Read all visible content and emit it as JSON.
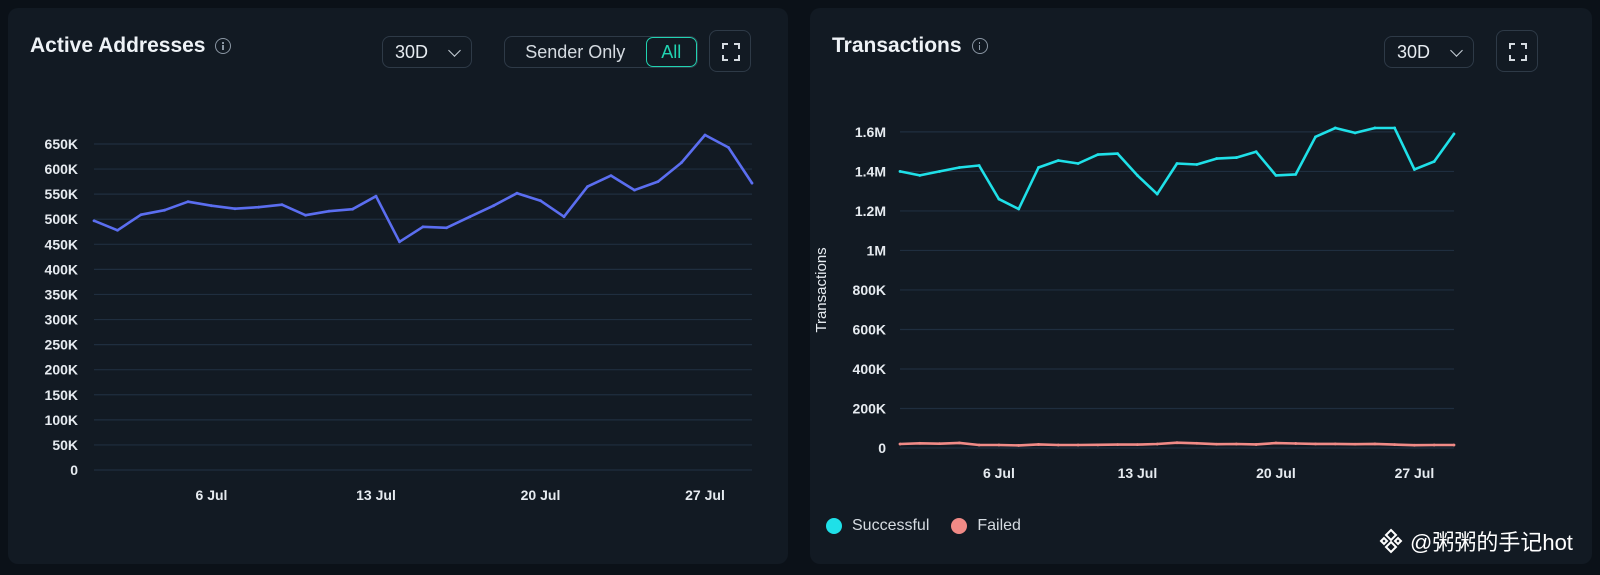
{
  "active_addresses": {
    "title": "Active Addresses",
    "period": "30D",
    "toggle": {
      "sender_only": "Sender Only",
      "all": "All",
      "selected": "All"
    },
    "line_color": "#5b6ef0"
  },
  "transactions": {
    "title": "Transactions",
    "period": "30D",
    "ylabel": "Transactions",
    "legend": [
      {
        "label": "Successful",
        "color": "#1fe0e8"
      },
      {
        "label": "Failed",
        "color": "#f08a86"
      }
    ]
  },
  "watermark": "@粥粥的手记hot",
  "colors": {
    "background": "#0b1118",
    "panel": "#121a23",
    "gridline": "#1f2e3f",
    "accent": "#21d3b1"
  },
  "chart_data": [
    {
      "type": "line",
      "title": "Active Addresses",
      "xlabel": "",
      "ylabel": "",
      "x_ticks": [
        "6 Jul",
        "13 Jul",
        "20 Jul",
        "27 Jul"
      ],
      "x_tick_days": [
        6,
        13,
        20,
        27
      ],
      "x": [
        1,
        2,
        3,
        4,
        5,
        6,
        7,
        8,
        9,
        10,
        11,
        12,
        13,
        14,
        15,
        16,
        17,
        18,
        19,
        20,
        21,
        22,
        23,
        24,
        25,
        26,
        27,
        28,
        29
      ],
      "y_ticks": [
        0,
        50000,
        100000,
        150000,
        200000,
        250000,
        300000,
        350000,
        400000,
        450000,
        500000,
        550000,
        600000,
        650000
      ],
      "y_tick_labels": [
        "0",
        "50K",
        "100K",
        "150K",
        "200K",
        "250K",
        "300K",
        "350K",
        "400K",
        "450K",
        "500K",
        "550K",
        "600K",
        "650K"
      ],
      "ylim": [
        0,
        650000
      ],
      "grid": true,
      "series": [
        {
          "values": [
            497000,
            478000,
            509000,
            518000,
            535000,
            527000,
            521000,
            524000,
            529000,
            508000,
            516000,
            520000,
            546000,
            455000,
            485000,
            483000,
            505000,
            527000,
            552000,
            537000,
            505000,
            565000,
            587000,
            558000,
            575000,
            613000,
            668000,
            643000,
            572000
          ]
        }
      ]
    },
    {
      "type": "line",
      "title": "Transactions",
      "xlabel": "",
      "ylabel": "Transactions",
      "x_ticks": [
        "6 Jul",
        "13 Jul",
        "20 Jul",
        "27 Jul"
      ],
      "x_tick_days": [
        6,
        13,
        20,
        27
      ],
      "x": [
        1,
        2,
        3,
        4,
        5,
        6,
        7,
        8,
        9,
        10,
        11,
        12,
        13,
        14,
        15,
        16,
        17,
        18,
        19,
        20,
        21,
        22,
        23,
        24,
        25,
        26,
        27,
        28,
        29
      ],
      "y_ticks": [
        0,
        200000,
        400000,
        600000,
        800000,
        1000000,
        1200000,
        1400000,
        1600000
      ],
      "y_tick_labels": [
        "0",
        "200K",
        "400K",
        "600K",
        "800K",
        "1M",
        "1.2M",
        "1.4M",
        "1.6M"
      ],
      "ylim": [
        0,
        1640000
      ],
      "grid": true,
      "legend_position": "bottom-left",
      "series": [
        {
          "name": "Successful",
          "values": [
            1400000,
            1380000,
            1400000,
            1420000,
            1430000,
            1260000,
            1210000,
            1420000,
            1455000,
            1440000,
            1485000,
            1490000,
            1380000,
            1285000,
            1440000,
            1435000,
            1465000,
            1470000,
            1500000,
            1380000,
            1385000,
            1575000,
            1620000,
            1595000,
            1620000,
            1620000,
            1410000,
            1450000,
            1590000
          ]
        },
        {
          "name": "Failed",
          "values": [
            20000,
            24000,
            22000,
            26000,
            15000,
            15000,
            13000,
            18000,
            15000,
            15000,
            16000,
            17000,
            17000,
            20000,
            27000,
            24000,
            19000,
            20000,
            18000,
            25000,
            23000,
            21000,
            21000,
            19000,
            21000,
            17000,
            14000,
            15000,
            15000
          ]
        }
      ]
    }
  ]
}
